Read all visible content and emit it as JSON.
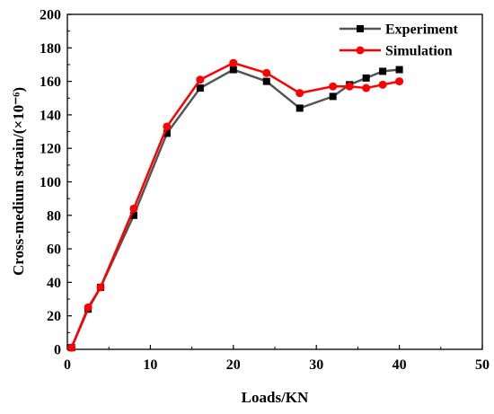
{
  "chart_data": {
    "type": "line",
    "xlabel": "Loads/KN",
    "ylabel": "Cross-medium strain/(×10⁻⁶)",
    "xlim": [
      0,
      50
    ],
    "ylim": [
      0,
      200
    ],
    "xticks": [
      "0",
      "10",
      "20",
      "30",
      "40",
      "50"
    ],
    "yticks": [
      "0",
      "20",
      "40",
      "60",
      "80",
      "100",
      "120",
      "140",
      "160",
      "180",
      "200"
    ],
    "grid": false,
    "legend_position": "top-right",
    "series": [
      {
        "name": "Experiment",
        "color": "#555555",
        "marker_color": "#000000",
        "marker": "square",
        "x": [
          0.5,
          2.5,
          4,
          8,
          12,
          16,
          20,
          24,
          28,
          32,
          34,
          36,
          38,
          40
        ],
        "y": [
          1,
          24,
          37,
          80,
          129,
          156,
          167,
          160,
          144,
          151,
          158,
          162,
          166,
          167
        ]
      },
      {
        "name": "Simulation",
        "color": "#ff0000",
        "marker_color": "#ff0000",
        "marker": "circle",
        "x": [
          0.5,
          2.5,
          4,
          8,
          12,
          16,
          20,
          24,
          28,
          32,
          34,
          36,
          38,
          40
        ],
        "y": [
          1,
          25,
          37,
          84,
          133,
          161,
          171,
          165,
          153,
          157,
          157,
          156,
          158,
          160
        ]
      }
    ]
  }
}
